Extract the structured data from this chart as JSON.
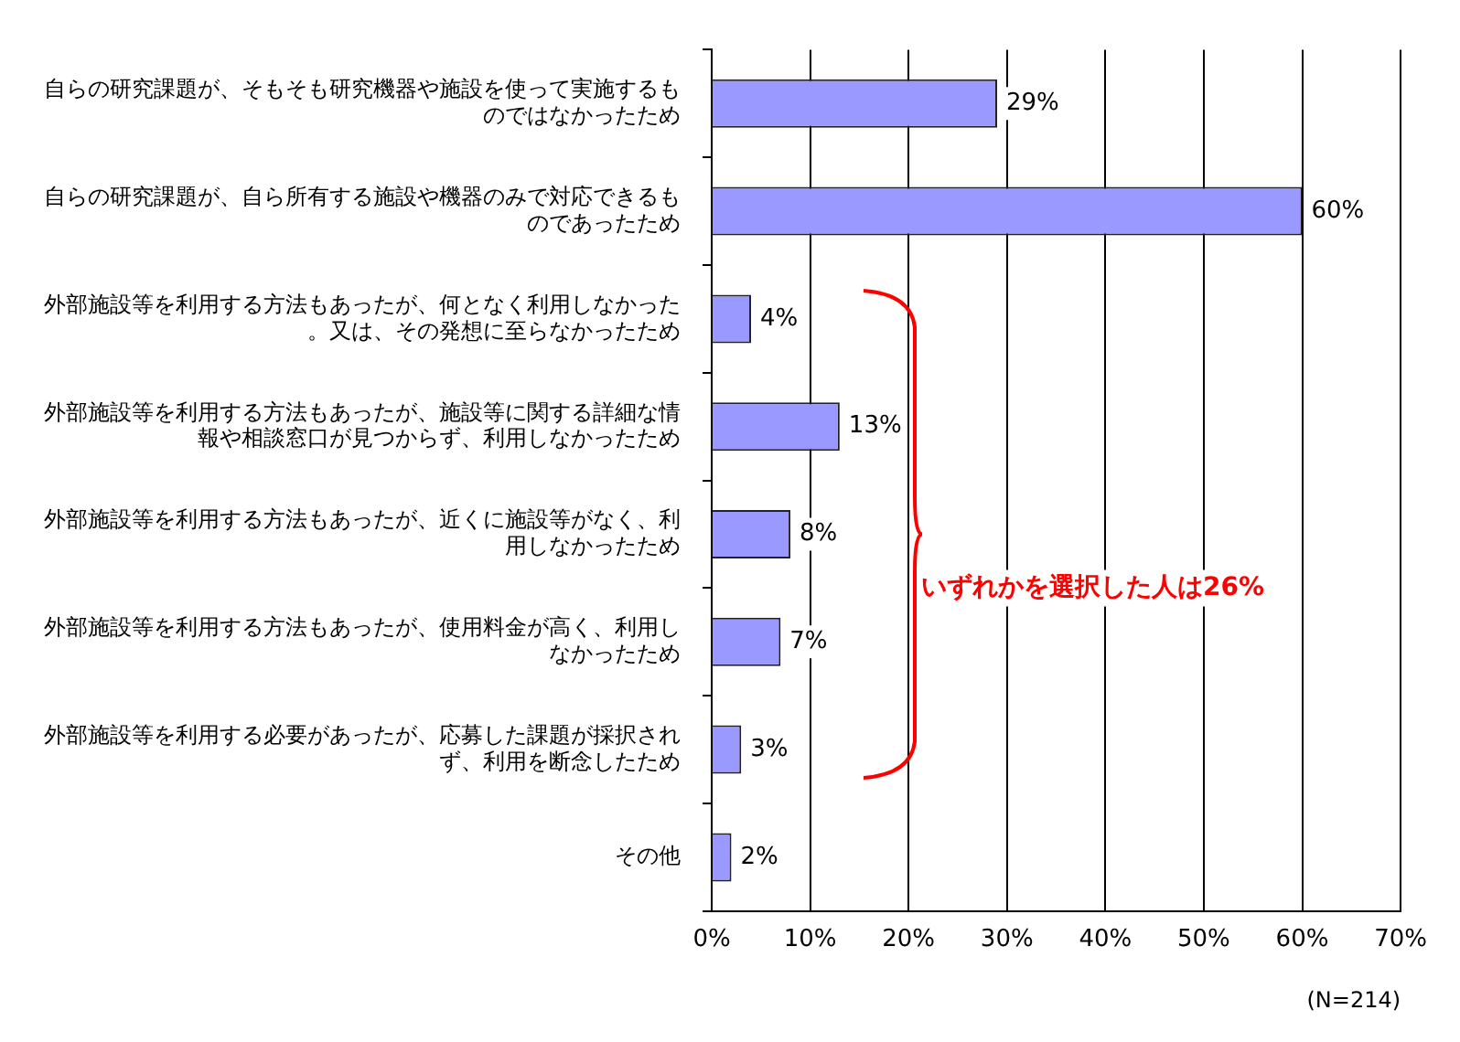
{
  "chart_data": {
    "type": "bar",
    "orientation": "horizontal",
    "categories": [
      "自らの研究課題が、そもそも研究機器や施設を使って実施するものではなかったため",
      "自らの研究課題が、自ら所有する施設や機器のみで対応できるものであったため",
      "外部施設等を利用する方法もあったが、何となく利用しなかった。又は、その発想に至らなかったため",
      "外部施設等を利用する方法もあったが、施設等に関する詳細な情報や相談窓口が見つからず、利用しなかったため",
      "外部施設等を利用する方法もあったが、近くに施設等がなく、利用しなかったため",
      "外部施設等を利用する方法もあったが、使用料金が高く、利用しなかったため",
      "外部施設等を利用する必要があったが、応募した課題が採択されず、利用を断念したため",
      "その他"
    ],
    "values": [
      29,
      60,
      4,
      13,
      8,
      7,
      3,
      2
    ],
    "value_labels": [
      "29%",
      "60%",
      "4%",
      "13%",
      "8%",
      "7%",
      "3%",
      "2%"
    ],
    "color": "#9999ff",
    "xlim": [
      0,
      70
    ],
    "xticks": [
      {
        "value": 0,
        "label": "0%"
      },
      {
        "value": 10,
        "label": "10%"
      },
      {
        "value": 20,
        "label": "20%"
      },
      {
        "value": 30,
        "label": "30%"
      },
      {
        "value": 40,
        "label": "40%"
      },
      {
        "value": 50,
        "label": "50%"
      },
      {
        "value": 60,
        "label": "60%"
      },
      {
        "value": 70,
        "label": "70%"
      }
    ],
    "grid": "x",
    "legend": false,
    "annotations": [
      "いずれかを選択した人は26%",
      "(N=214)"
    ]
  }
}
